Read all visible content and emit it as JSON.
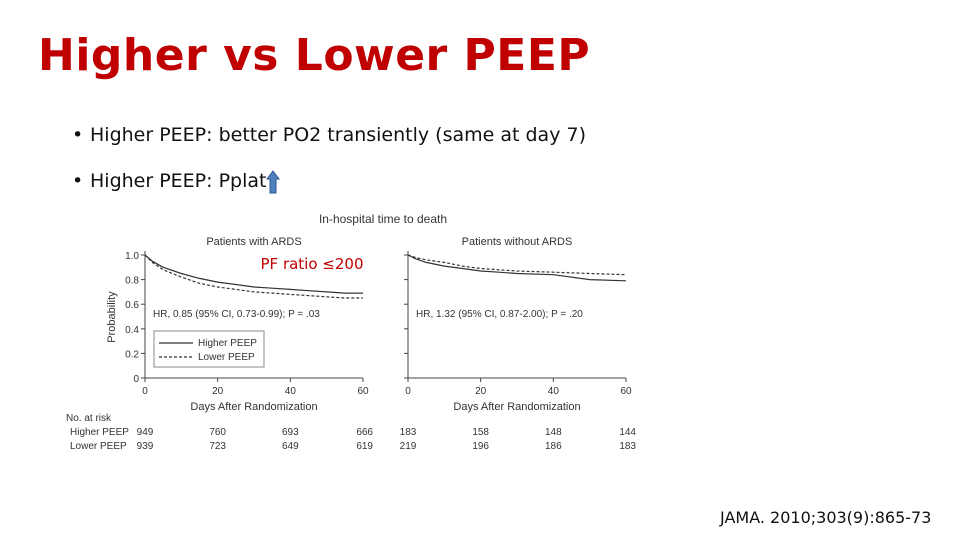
{
  "slide": {
    "title": "Higher vs Lower PEEP",
    "bullets": [
      "Higher PEEP: better PO2 transiently (same at day 7)",
      "Higher PEEP: Pplat"
    ],
    "arrow_icon": "up-arrow-icon",
    "arrow_color": "#4f81bd",
    "citation": "JAMA. 2010;303(9):865-73"
  },
  "figure": {
    "title": "In-hospital time to death",
    "annotation": "PF ratio ≤200",
    "annotation_color": "#c00000",
    "ylabel": "Probability",
    "yticks": [
      "1.0",
      "0.8",
      "0.6",
      "0.4",
      "0.2",
      "0"
    ],
    "xticks": [
      "0",
      "20",
      "40",
      "60"
    ],
    "xlabel": "Days After Randomization",
    "legend": [
      "Higher PEEP",
      "Lower PEEP"
    ],
    "risk_table": {
      "header": "No. at risk",
      "rows": [
        {
          "label": "Higher PEEP",
          "with_ards": [
            "949",
            "760",
            "693",
            "666"
          ],
          "without_ards": [
            "183",
            "158",
            "148",
            "144"
          ]
        },
        {
          "label": "Lower PEEP",
          "with_ards": [
            "939",
            "723",
            "649",
            "619"
          ],
          "without_ards": [
            "219",
            "196",
            "186",
            "183"
          ]
        }
      ]
    }
  },
  "chart_data": [
    {
      "type": "line",
      "title": "Patients with ARDS",
      "xlabel": "Days After Randomization",
      "ylabel": "Probability",
      "xlim": [
        0,
        60
      ],
      "ylim": [
        0,
        1.0
      ],
      "hr_text": "HR, 0.85 (95% CI, 0.73-0.99); P = .03",
      "series": [
        {
          "name": "Higher PEEP",
          "style": "solid",
          "x": [
            0,
            2,
            5,
            10,
            15,
            20,
            25,
            30,
            35,
            40,
            45,
            50,
            55,
            60
          ],
          "y": [
            1.0,
            0.95,
            0.9,
            0.85,
            0.81,
            0.78,
            0.76,
            0.74,
            0.73,
            0.72,
            0.71,
            0.7,
            0.69,
            0.69
          ]
        },
        {
          "name": "Lower PEEP",
          "style": "dashed",
          "x": [
            0,
            2,
            5,
            10,
            15,
            20,
            25,
            30,
            35,
            40,
            45,
            50,
            55,
            60
          ],
          "y": [
            1.0,
            0.94,
            0.88,
            0.82,
            0.77,
            0.74,
            0.72,
            0.7,
            0.69,
            0.68,
            0.67,
            0.66,
            0.65,
            0.65
          ]
        }
      ]
    },
    {
      "type": "line",
      "title": "Patients without ARDS",
      "xlabel": "Days After Randomization",
      "ylabel": "Probability",
      "xlim": [
        0,
        60
      ],
      "ylim": [
        0,
        1.0
      ],
      "hr_text": "HR, 1.32 (95% CI, 0.87-2.00); P = .20",
      "series": [
        {
          "name": "Higher PEEP",
          "style": "solid",
          "x": [
            0,
            2,
            5,
            10,
            15,
            20,
            25,
            30,
            40,
            50,
            60
          ],
          "y": [
            1.0,
            0.97,
            0.94,
            0.91,
            0.89,
            0.87,
            0.86,
            0.85,
            0.84,
            0.8,
            0.79
          ]
        },
        {
          "name": "Lower PEEP",
          "style": "dashed",
          "x": [
            0,
            2,
            5,
            10,
            15,
            20,
            25,
            30,
            40,
            50,
            60
          ],
          "y": [
            1.0,
            0.98,
            0.96,
            0.94,
            0.91,
            0.89,
            0.88,
            0.87,
            0.86,
            0.85,
            0.84
          ]
        }
      ]
    }
  ]
}
